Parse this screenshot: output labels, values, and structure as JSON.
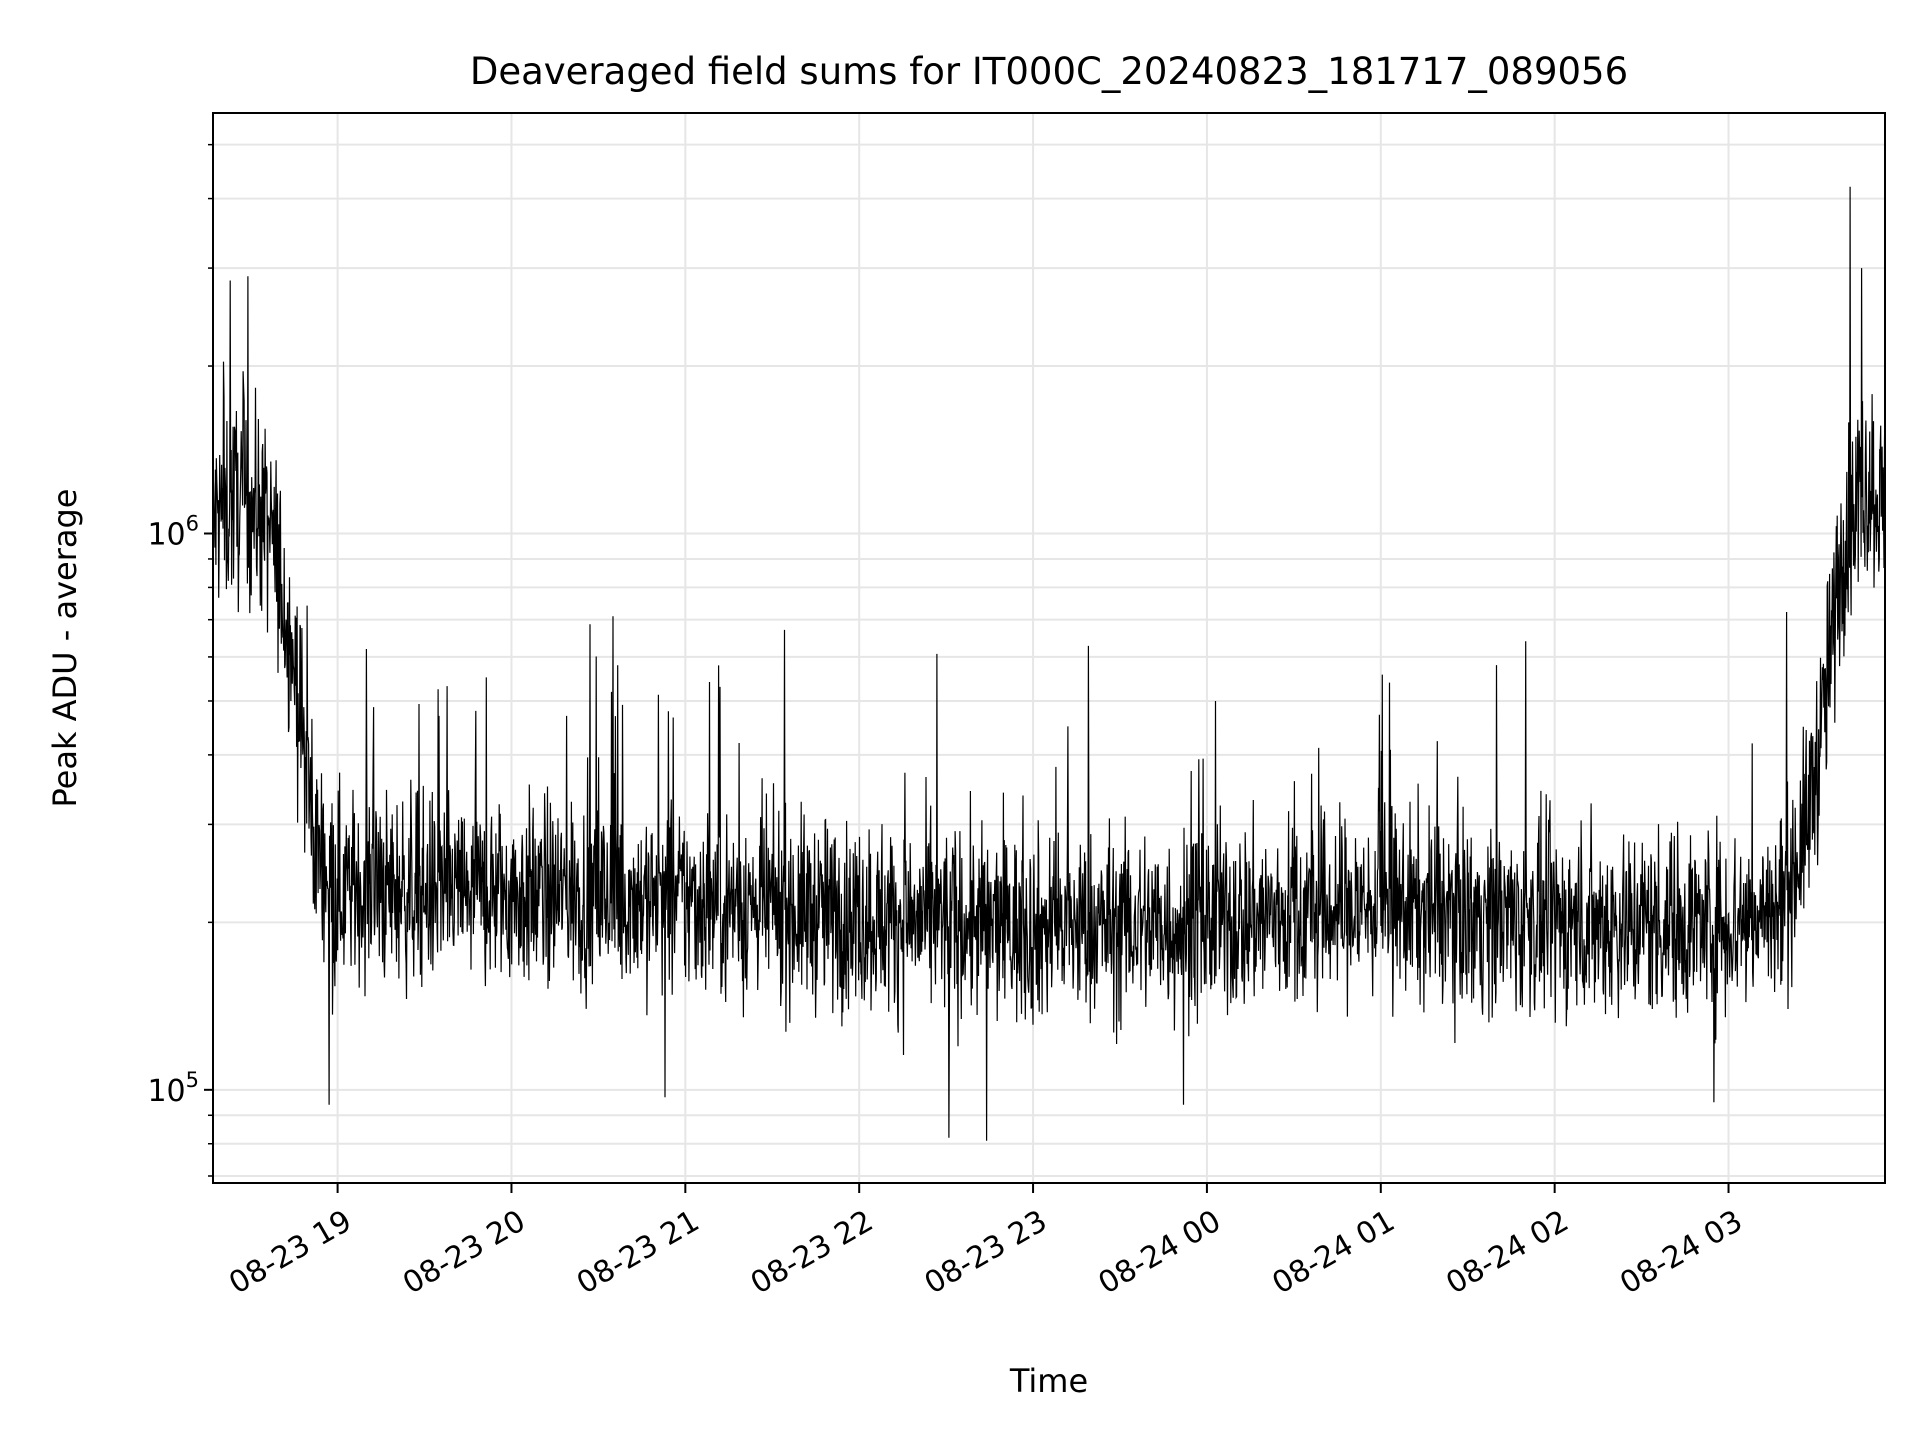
{
  "chart_data": {
    "type": "line",
    "title": "Deaveraged field sums for IT000C_20240823_181717_089056",
    "xlabel": "Time",
    "ylabel": "Peak ADU - average",
    "y_scale": "log",
    "ylim": [
      68000,
      5700000
    ],
    "xlim": [
      "2024-08-23 18:17",
      "2024-08-24 03:54"
    ],
    "x_ticks": [
      {
        "value": "2024-08-23 19:00",
        "label": "08-23 19"
      },
      {
        "value": "2024-08-23 20:00",
        "label": "08-23 20"
      },
      {
        "value": "2024-08-23 21:00",
        "label": "08-23 21"
      },
      {
        "value": "2024-08-23 22:00",
        "label": "08-23 22"
      },
      {
        "value": "2024-08-23 23:00",
        "label": "08-23 23"
      },
      {
        "value": "2024-08-24 00:00",
        "label": "08-24 00"
      },
      {
        "value": "2024-08-24 01:00",
        "label": "08-24 01"
      },
      {
        "value": "2024-08-24 02:00",
        "label": "08-24 02"
      },
      {
        "value": "2024-08-24 03:00",
        "label": "08-24 03"
      }
    ],
    "y_ticks": [
      {
        "value": 100000,
        "base": "10",
        "exp": "5"
      },
      {
        "value": 1000000,
        "base": "10",
        "exp": "6"
      }
    ],
    "grid": true,
    "line_color": "#000000",
    "series": [
      {
        "points": [
          [
            "2024-08-23 18:17",
            1050000
          ],
          [
            "2024-08-23 18:25",
            1150000
          ],
          [
            "2024-08-23 18:33",
            1100000
          ],
          [
            "2024-08-23 18:38",
            950000
          ],
          [
            "2024-08-23 18:43",
            700000
          ],
          [
            "2024-08-23 18:47",
            480000
          ],
          [
            "2024-08-23 18:52",
            280000
          ],
          [
            "2024-08-23 19:00",
            230000
          ],
          [
            "2024-08-23 20:00",
            225000
          ],
          [
            "2024-08-23 21:00",
            220000
          ],
          [
            "2024-08-23 22:00",
            205000
          ],
          [
            "2024-08-23 23:00",
            195000
          ],
          [
            "2024-08-24 00:00",
            200000
          ],
          [
            "2024-08-24 01:00",
            215000
          ],
          [
            "2024-08-24 02:00",
            200000
          ],
          [
            "2024-08-24 03:00",
            200000
          ],
          [
            "2024-08-24 03:18",
            210000
          ],
          [
            "2024-08-24 03:27",
            300000
          ],
          [
            "2024-08-24 03:33",
            480000
          ],
          [
            "2024-08-24 03:40",
            1000000
          ],
          [
            "2024-08-24 03:47",
            1250000
          ],
          [
            "2024-08-24 03:54",
            1150000
          ]
        ],
        "spikes": [
          [
            "2024-08-23 18:23",
            2850000
          ],
          [
            "2024-08-23 18:29",
            2900000
          ],
          [
            "2024-08-23 18:34",
            1400000
          ],
          [
            "2024-08-23 18:57",
            94000
          ],
          [
            "2024-08-23 19:10",
            620000
          ],
          [
            "2024-08-23 19:35",
            470000
          ],
          [
            "2024-08-23 20:19",
            470000
          ],
          [
            "2024-08-23 20:35",
            710000
          ],
          [
            "2024-08-23 20:53",
            97000
          ],
          [
            "2024-08-23 21:12",
            530000
          ],
          [
            "2024-08-23 22:31",
            82000
          ],
          [
            "2024-08-23 22:44",
            81000
          ],
          [
            "2024-08-23 23:12",
            450000
          ],
          [
            "2024-08-23 23:52",
            94000
          ],
          [
            "2024-08-24 00:03",
            500000
          ],
          [
            "2024-08-24 01:50",
            640000
          ],
          [
            "2024-08-24 01:40",
            580000
          ],
          [
            "2024-08-24 02:55",
            95000
          ],
          [
            "2024-08-24 03:42",
            4200000
          ],
          [
            "2024-08-24 03:46",
            3000000
          ]
        ]
      }
    ]
  }
}
